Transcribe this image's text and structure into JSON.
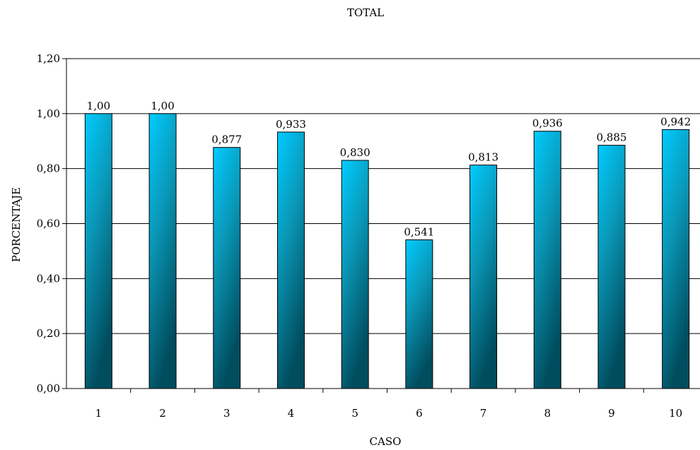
{
  "chart_data": {
    "type": "bar",
    "title": "TOTAL",
    "xlabel": "CASO",
    "ylabel": "PORCENTAJE",
    "categories": [
      "1",
      "2",
      "3",
      "4",
      "5",
      "6",
      "7",
      "8",
      "9",
      "10"
    ],
    "values": [
      1.0,
      1.0,
      0.877,
      0.933,
      0.83,
      0.541,
      0.813,
      0.936,
      0.885,
      0.942
    ],
    "data_labels": [
      "1,00",
      "1,00",
      "0,877",
      "0,933",
      "0,830",
      "0,541",
      "0,813",
      "0,936",
      "0,885",
      "0,942"
    ],
    "ylim": [
      0,
      1.2
    ],
    "yticks": [
      0,
      0.2,
      0.4,
      0.6,
      0.8,
      1.0,
      1.2
    ],
    "ytick_labels": [
      "0,00",
      "0,20",
      "0,40",
      "0,60",
      "0,80",
      "1,00",
      "1,20"
    ],
    "grid": true,
    "legend": "none",
    "colors": {
      "bar_top": "#00ccff",
      "bar_bottom": "#004d5e",
      "bar_edge": "#000000",
      "gridline": "#000000"
    }
  }
}
